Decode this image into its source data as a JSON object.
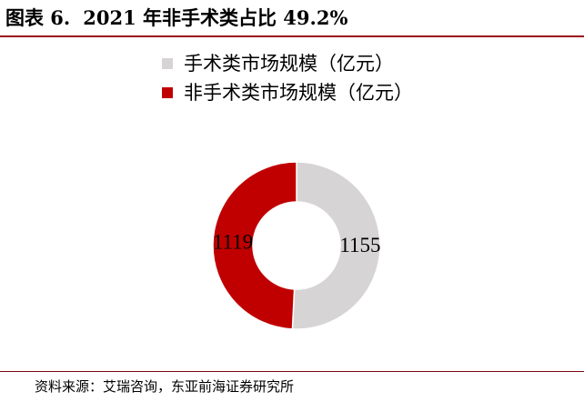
{
  "figure": {
    "label": "图表 6.",
    "title": "2021 年非手术类占比 49.2%",
    "source": "资料来源：艾瑞咨询，东亚前海证券研究所"
  },
  "colors": {
    "title_rule": "#9b0a16",
    "footer_rule": "#7a0a14",
    "ring_bg": "#ffffff"
  },
  "chart_data": {
    "type": "pie",
    "variant": "donut",
    "title": "2021 年非手术类占比 49.2%",
    "legend_position": "top-center",
    "series": [
      {
        "name": "手术类市场规模（亿元）",
        "value": 1155,
        "color": "#d6d4d4",
        "label": "1155"
      },
      {
        "name": "非手术类市场规模（亿元）",
        "value": 1119,
        "color": "#c00000",
        "label": "1119"
      }
    ]
  }
}
